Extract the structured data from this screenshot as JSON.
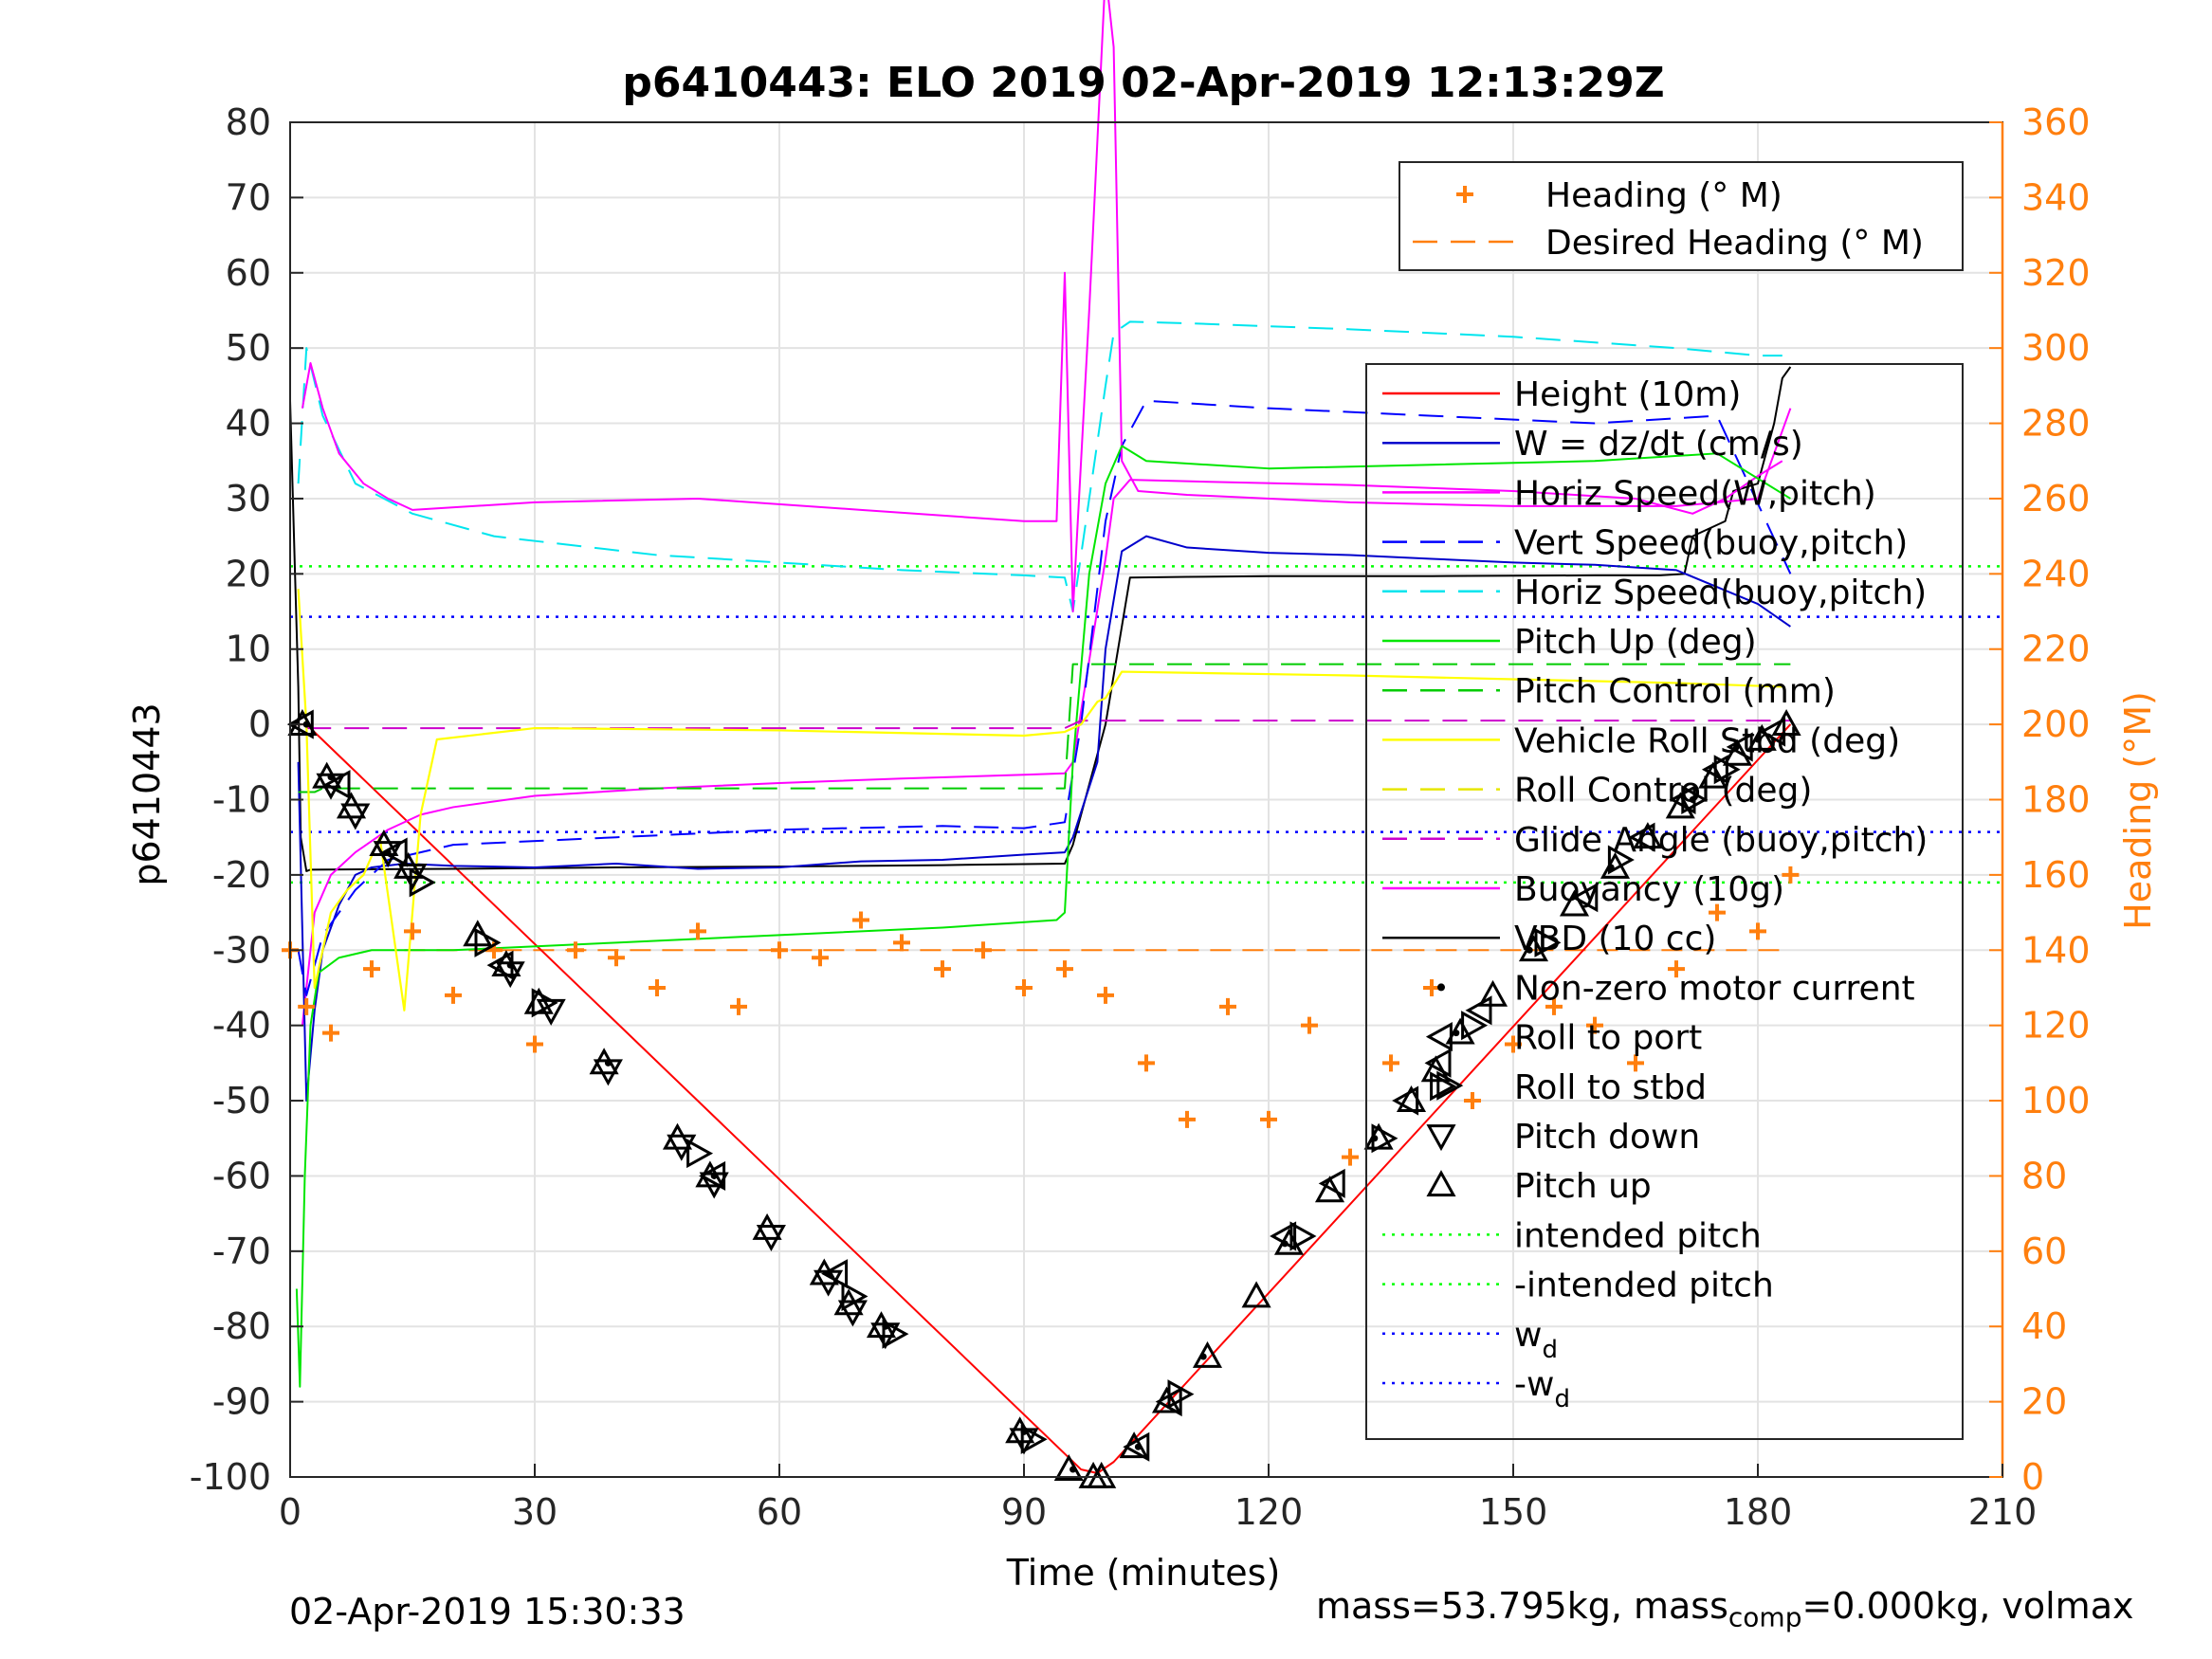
{
  "chart_data": {
    "type": "line",
    "title": "p6410443: ELO 2019 02-Apr-2019 12:13:29Z",
    "xlabel": "Time (minutes)",
    "ylabel": "p6410443",
    "y2label": "Heading (°M)",
    "xlim": [
      0,
      210
    ],
    "ylim": [
      -100,
      80
    ],
    "y2lim": [
      0,
      360
    ],
    "xticks": [
      "0",
      "30",
      "60",
      "90",
      "120",
      "150",
      "180",
      "210"
    ],
    "yticks": [
      "-100",
      "-90",
      "-80",
      "-70",
      "-60",
      "-50",
      "-40",
      "-30",
      "-20",
      "-10",
      "0",
      "10",
      "20",
      "30",
      "40",
      "50",
      "60",
      "70",
      "80"
    ],
    "y2ticks": [
      "0",
      "20",
      "40",
      "60",
      "80",
      "100",
      "120",
      "140",
      "160",
      "180",
      "200",
      "220",
      "240",
      "260",
      "280",
      "300",
      "320",
      "340",
      "360"
    ],
    "grid": true,
    "colors": {
      "height": "#ff0000",
      "w": "#0000cc",
      "horiz_w": "#ff00ff",
      "vert_buoy": "#0000ff",
      "horiz_buoy": "#00e5ee",
      "pitch": "#00e600",
      "pitch_ctrl": "#00cc00",
      "roll": "#ffff00",
      "roll_ctrl": "#e6e600",
      "glide": "#cc00cc",
      "buoyancy": "#ff00ff",
      "vbd": "#000000",
      "heading": "#ff7f0e",
      "intended": "#00ff00",
      "wd": "#0000ff",
      "right_axis": "#ff7f0e"
    },
    "legend_heading": [
      {
        "label": "Heading (° M)",
        "style": "plus",
        "color": "#ff7f0e"
      },
      {
        "label": "Desired Heading (° M)",
        "style": "dash",
        "color": "#ff7f0e"
      }
    ],
    "legend_heading_loc": "top-right",
    "legend_main": [
      {
        "label": "Height (10m)",
        "style": "solid",
        "color": "#ff0000"
      },
      {
        "label": "W = dz/dt (cm/s)",
        "style": "solid",
        "color": "#0000cc"
      },
      {
        "label": "Horiz Speed(W,pitch)",
        "style": "solid",
        "color": "#ff00ff"
      },
      {
        "label": "Vert Speed(buoy,pitch)",
        "style": "dash",
        "color": "#0000ff"
      },
      {
        "label": "Horiz Speed(buoy,pitch)",
        "style": "dash",
        "color": "#00e5ee"
      },
      {
        "label": "Pitch Up (deg)",
        "style": "solid",
        "color": "#00e600"
      },
      {
        "label": "Pitch Control (mm)",
        "style": "dash",
        "color": "#00cc00"
      },
      {
        "label": "Vehicle Roll Stbd (deg)",
        "style": "solid",
        "color": "#ffff00"
      },
      {
        "label": "Roll Control (deg)",
        "style": "dash",
        "color": "#e6e600"
      },
      {
        "label": "Glide Angle (buoy,pitch)",
        "style": "dash",
        "color": "#cc00cc"
      },
      {
        "label": "Buoyancy (10g)",
        "style": "solid",
        "color": "#ff00ff"
      },
      {
        "label": "VBD (10 cc)",
        "style": "solid",
        "color": "#000000"
      },
      {
        "label": "Non-zero motor current",
        "style": "dot",
        "color": "#000000"
      },
      {
        "label": "Roll to port",
        "style": "tri-left",
        "color": "#000000"
      },
      {
        "label": "Roll to stbd",
        "style": "tri-right",
        "color": "#000000"
      },
      {
        "label": "Pitch down",
        "style": "tri-down",
        "color": "#000000"
      },
      {
        "label": "Pitch up",
        "style": "tri-up",
        "color": "#000000"
      },
      {
        "label": "intended pitch",
        "style": "dotted",
        "color": "#00ff00"
      },
      {
        "label": "-intended pitch",
        "style": "dotted",
        "color": "#00ff00"
      },
      {
        "label": "w",
        "sub": "d",
        "style": "dotted",
        "color": "#0000ff"
      },
      {
        "label": "-w",
        "sub": "d",
        "style": "dotted",
        "color": "#0000ff"
      }
    ],
    "legend_main_loc": "right",
    "reference_lines": {
      "intended_pitch": 21,
      "neg_intended_pitch": -21,
      "wd": 14.3,
      "neg_wd": -14.3,
      "desired_heading": 140
    },
    "series": [
      {
        "name": "Height (10m)",
        "key": "height",
        "x": [
          0.5,
          2,
          97,
          99,
          101,
          184
        ],
        "values": [
          0,
          0,
          -99,
          -99.5,
          -98,
          0
        ]
      },
      {
        "name": "VBD (10 cc)",
        "key": "vbd",
        "x": [
          0,
          0.6,
          1,
          1.3,
          2,
          2.5,
          20,
          40,
          60,
          80,
          95,
          96,
          100,
          103,
          110,
          120,
          140,
          160,
          168,
          171,
          172,
          176,
          177,
          180,
          181,
          182,
          183,
          184
        ],
        "values": [
          43,
          20,
          5,
          -15,
          -19.5,
          -19.3,
          -19.2,
          -19,
          -18.9,
          -18.7,
          -18.5,
          -16,
          0,
          19.5,
          19.6,
          19.7,
          19.7,
          19.8,
          19.8,
          20,
          25,
          27,
          31,
          32,
          36,
          40,
          46,
          47.5
        ]
      },
      {
        "name": "Buoyancy (10g)",
        "key": "buoyancy",
        "x": [
          1.5,
          2,
          3,
          5,
          8,
          12,
          16,
          20,
          30,
          45,
          60,
          75,
          90,
          95,
          96,
          100,
          101,
          103,
          110,
          130,
          150,
          165,
          172,
          176,
          180,
          183
        ],
        "values": [
          -40,
          -35,
          -25,
          -20,
          -17,
          -14,
          -12,
          -11,
          -9.5,
          -8.5,
          -7.8,
          -7.2,
          -6.7,
          -6.5,
          -5,
          22,
          30,
          32.5,
          32.3,
          31.8,
          31,
          30,
          28,
          30,
          33,
          35
        ]
      },
      {
        "name": "W = dz/dt (cm/s)",
        "key": "w",
        "x": [
          1,
          2,
          3,
          4,
          6,
          8,
          10,
          14,
          20,
          30,
          40,
          50,
          60,
          70,
          80,
          90,
          95,
          96,
          99,
          100,
          102,
          105,
          110,
          120,
          130,
          140,
          150,
          160,
          170,
          180,
          184
        ],
        "values": [
          -5,
          -50,
          -38,
          -30,
          -24,
          -20,
          -19,
          -18.5,
          -18.8,
          -19,
          -18.5,
          -19.2,
          -19,
          -18.2,
          -18,
          -17.3,
          -17,
          -15,
          -5,
          10,
          23,
          25,
          23.5,
          22.8,
          22.5,
          22,
          21.5,
          21.2,
          20.5,
          16,
          13
        ]
      },
      {
        "name": "Vert Speed(buoy,pitch)",
        "key": "vert_buoy",
        "x": [
          1,
          2,
          4,
          8,
          12,
          20,
          40,
          60,
          80,
          90,
          95,
          97,
          100,
          102,
          105,
          120,
          140,
          160,
          175,
          184
        ],
        "values": [
          -30,
          -36,
          -28,
          -22,
          -18,
          -16,
          -15,
          -14,
          -13.5,
          -13.8,
          -13,
          0,
          27,
          37,
          43,
          42,
          41,
          40,
          41,
          20
        ]
      },
      {
        "name": "Horiz Speed(buoy,pitch)",
        "key": "horiz_buoy",
        "x": [
          1,
          2,
          4,
          8,
          15,
          25,
          45,
          60,
          75,
          90,
          95,
          96,
          98,
          100,
          101,
          103,
          110,
          130,
          150,
          170,
          180,
          183
        ],
        "values": [
          32,
          50,
          41,
          32,
          28,
          25,
          22.5,
          21.5,
          20.5,
          19.8,
          19.5,
          15,
          30,
          45,
          52,
          53.5,
          53.3,
          52.5,
          51.5,
          50,
          49,
          49
        ]
      },
      {
        "name": "Horiz Speed(W,pitch)",
        "key": "horiz_w",
        "x": [
          1.5,
          2.5,
          4,
          6,
          9,
          12,
          15,
          30,
          50,
          70,
          90,
          94,
          95,
          96,
          98,
          100,
          101,
          102,
          104,
          110,
          130,
          150,
          170,
          180,
          184
        ],
        "values": [
          42,
          48,
          42,
          36,
          32,
          30,
          28.5,
          29.5,
          30,
          28.5,
          27,
          27,
          60,
          15,
          55,
          100,
          90,
          35,
          31,
          30.5,
          29.5,
          29,
          29,
          30,
          42
        ]
      },
      {
        "name": "Pitch Up (deg)",
        "key": "pitch",
        "x": [
          0.8,
          1.2,
          1.8,
          2.5,
          3.5,
          6,
          10,
          20,
          40,
          60,
          80,
          94,
          95,
          96,
          98,
          100,
          102,
          105,
          120,
          140,
          160,
          175,
          184
        ],
        "values": [
          -75,
          -88,
          -60,
          -40,
          -33,
          -31,
          -30,
          -30,
          -29,
          -28,
          -27,
          -26,
          -25,
          -5,
          20,
          32,
          37,
          35,
          34,
          34.5,
          35,
          36,
          30
        ]
      },
      {
        "name": "Pitch Control (mm)",
        "key": "pitch_ctrl",
        "x": [
          1,
          3,
          4,
          30,
          60,
          95,
          96,
          184
        ],
        "values": [
          -9,
          -9,
          -8.5,
          -8.5,
          -8.5,
          -8.5,
          8,
          8
        ]
      },
      {
        "name": "Glide Angle (buoy,pitch)",
        "key": "glide",
        "x": [
          2,
          95,
          96,
          97,
          184
        ],
        "values": [
          -0.5,
          -0.5,
          0,
          0.5,
          0.5
        ]
      },
      {
        "name": "Vehicle Roll Stbd (deg)",
        "key": "roll",
        "x": [
          1,
          2,
          3,
          5,
          7,
          9,
          11,
          14,
          16,
          18,
          30,
          60,
          90,
          95,
          97,
          99,
          100,
          102,
          130,
          150,
          170,
          183
        ],
        "values": [
          18,
          0,
          -35,
          -25,
          -22,
          -20,
          -15,
          -38,
          -12,
          -2,
          -0.5,
          -0.8,
          -1.5,
          -1,
          0,
          3,
          3.5,
          7,
          6.5,
          6,
          5.5,
          5
        ]
      },
      {
        "name": "Heading (° M)",
        "key": "heading",
        "x": [
          0,
          2,
          5,
          10,
          15,
          20,
          25,
          30,
          35,
          40,
          45,
          50,
          55,
          60,
          65,
          70,
          75,
          80,
          85,
          90,
          95,
          100,
          105,
          110,
          115,
          120,
          125,
          130,
          135,
          140,
          145,
          150,
          155,
          160,
          165,
          170,
          175,
          180,
          184
        ],
        "values": [
          140,
          125,
          118,
          135,
          145,
          128,
          140,
          115,
          140,
          138,
          130,
          145,
          125,
          140,
          138,
          148,
          142,
          135,
          140,
          130,
          135,
          128,
          110,
          95,
          125,
          95,
          120,
          85,
          110,
          130,
          100,
          115,
          125,
          120,
          110,
          135,
          150,
          145,
          160
        ]
      }
    ],
    "markers": {
      "pitch_down": {
        "x": [
          5,
          8,
          12,
          15,
          27,
          32,
          39,
          48,
          52,
          59,
          66,
          69,
          73,
          90
        ],
        "values": [
          -8,
          -12,
          -17,
          -20,
          -33,
          -38,
          -46,
          -56,
          -61,
          -68,
          -74,
          -78,
          -81,
          -95
        ]
      },
      "pitch_up": {
        "x": [
          1.5,
          4.5,
          7.5,
          11.5,
          14.5,
          23,
          26.5,
          30.5,
          38.5,
          47.5,
          51.5,
          58.5,
          65.5,
          68.5,
          72.5,
          89.5,
          95.5,
          98.5,
          99.5,
          103.5,
          107.5,
          112.5,
          118.5,
          122.5,
          127.5,
          133.5,
          137.5,
          140.5,
          143.5,
          147.5,
          152.5,
          157.5,
          162.5,
          166.5,
          170.5,
          174.5,
          177.5,
          180.5,
          183.5
        ],
        "values": [
          0,
          -7,
          -11,
          -16,
          -19,
          -28,
          -32,
          -37,
          -45,
          -55,
          -60,
          -67,
          -73,
          -77,
          -80,
          -94,
          -99,
          -100,
          -100,
          -96,
          -90,
          -84,
          -76,
          -69,
          -62,
          -55,
          -50,
          -46,
          -41,
          -36,
          -30,
          -24,
          -19,
          -15,
          -11,
          -7,
          -4,
          -2,
          0
        ]
      },
      "roll_port": {
        "x": [
          1.5,
          6,
          13,
          26,
          52,
          67,
          104,
          108,
          122,
          128,
          137,
          141,
          146,
          159,
          166,
          171,
          175,
          178,
          182
        ],
        "values": [
          0,
          -8,
          -17,
          -32,
          -60,
          -73,
          -96,
          -90,
          -68,
          -61,
          -50,
          -45,
          -38,
          -23,
          -15,
          -10,
          -6,
          -3,
          -1
        ]
      },
      "roll_stbd": {
        "x": [
          16,
          24,
          31,
          50,
          69,
          74,
          91,
          109,
          124,
          134,
          142,
          145,
          154,
          163,
          172,
          176
        ],
        "values": [
          -21,
          -29,
          -37,
          -57,
          -76,
          -81,
          -95,
          -89,
          -68,
          -55,
          -48,
          -40,
          -29,
          -18,
          -10,
          -6
        ]
      },
      "motor_current": {
        "x": [
          2,
          5,
          12,
          27,
          39,
          52,
          66,
          73,
          90,
          96,
          104,
          112,
          122,
          133,
          143,
          152,
          162,
          172,
          180
        ],
        "values": [
          0,
          -7,
          -17,
          -32,
          -45,
          -60,
          -73,
          -80,
          -94,
          -99,
          -96,
          -84,
          -69,
          -55,
          -41,
          -30,
          -19,
          -10,
          -2
        ]
      }
    }
  },
  "footer": {
    "timestamp": "02-Apr-2019 15:30:33",
    "mass_text_a": "mass=53.795kg, mass",
    "mass_sub": "comp",
    "mass_text_b": "=0.000kg, volmax"
  }
}
